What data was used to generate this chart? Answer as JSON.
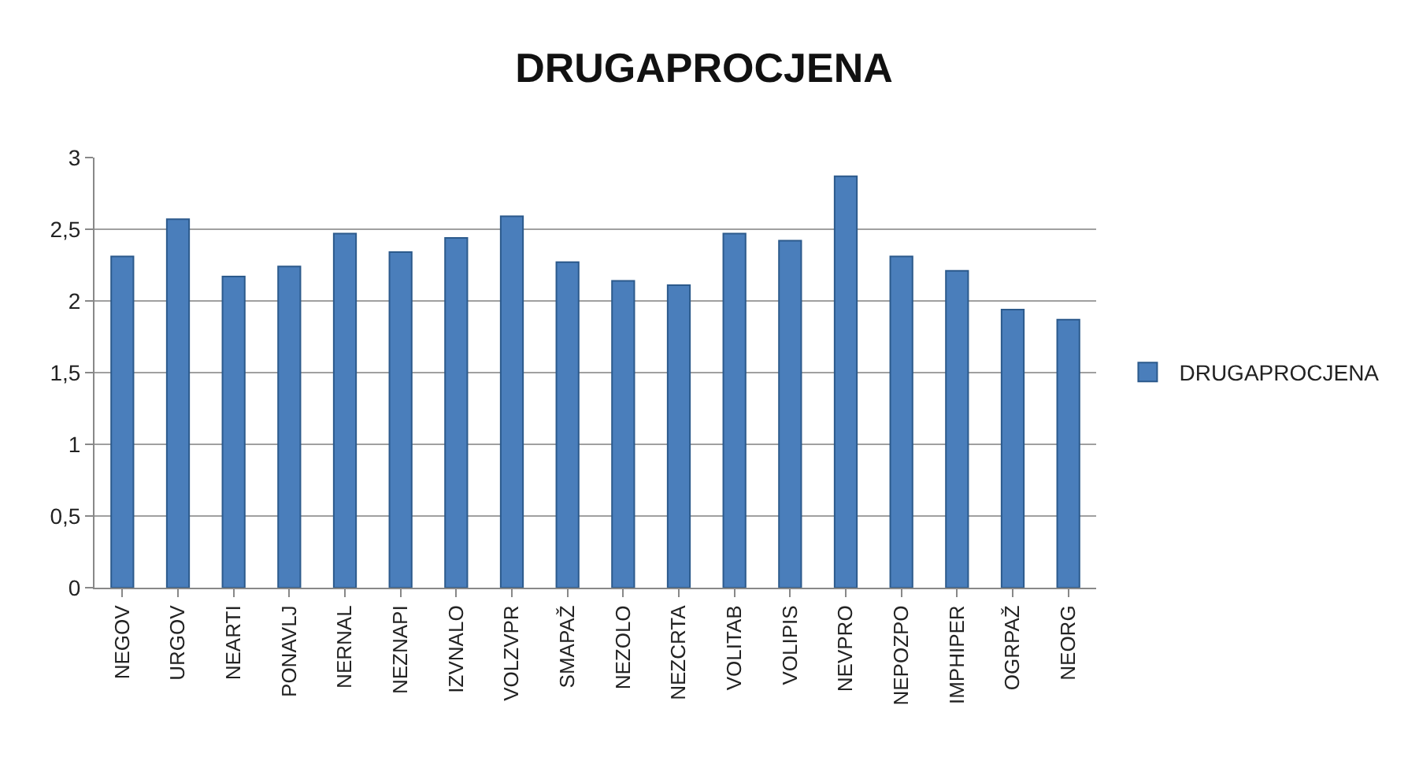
{
  "chart_data": {
    "type": "bar",
    "title": "DRUGAPROCJENA",
    "categories": [
      "NEGOV",
      "URGOV",
      "NEARTI",
      "PONAVLJ",
      "NERNAL",
      "NEZNAPI",
      "IZVNALO",
      "VOLZVPR",
      "SMAPAŽ",
      "NEZOLO",
      "NEZCRTA",
      "VOLITAB",
      "VOLIPIS",
      "NEVPRO",
      "NEPOZPO",
      "IMPHIPER",
      "OGRPAŽ",
      "NEORG"
    ],
    "series": [
      {
        "name": "DRUGAPROCJENA",
        "color": "#4a7ebb",
        "values": [
          2.31,
          2.57,
          2.17,
          2.24,
          2.47,
          2.34,
          2.44,
          2.59,
          2.27,
          2.14,
          2.11,
          2.47,
          2.42,
          2.87,
          2.31,
          2.21,
          1.94,
          1.87
        ]
      }
    ],
    "ylim": [
      0,
      3
    ],
    "yticks": [
      0,
      {
        "value": 0.5,
        "label": "0,5"
      },
      1,
      {
        "value": 1.5,
        "label": "1,5"
      },
      2,
      {
        "value": 2.5,
        "label": "2,5"
      },
      3
    ],
    "grid": "y",
    "legend": "right"
  }
}
